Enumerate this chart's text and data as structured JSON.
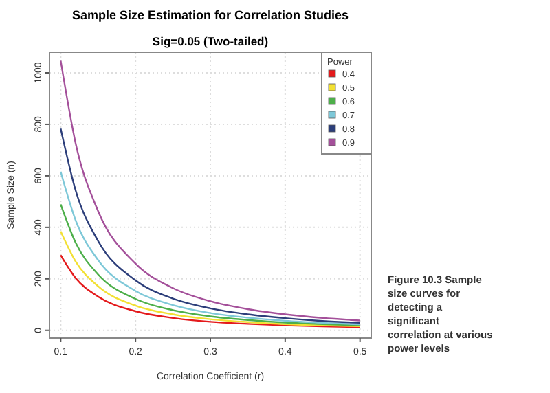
{
  "chart_data": {
    "type": "line",
    "title": "Sample Size Estimation for Correlation Studies",
    "subtitle": "Sig=0.05 (Two-tailed)",
    "xlabel": "Correlation Coefficient (r)",
    "ylabel": "Sample Size (n)",
    "legend_title": "Power",
    "x": [
      0.1,
      0.12,
      0.15,
      0.2,
      0.25,
      0.3,
      0.35,
      0.4,
      0.45,
      0.5
    ],
    "series": [
      {
        "name": "0.4",
        "color": "#e41a1c",
        "values": [
          292,
          203,
          131,
          74,
          48,
          33,
          25,
          19,
          15,
          13
        ]
      },
      {
        "name": "0.5",
        "color": "#f2e033",
        "values": [
          384,
          267,
          171,
          96,
          62,
          43,
          32,
          24,
          19,
          16
        ]
      },
      {
        "name": "0.6",
        "color": "#4daf4a",
        "values": [
          489,
          340,
          217,
          122,
          78,
          54,
          40,
          30,
          24,
          19
        ]
      },
      {
        "name": "0.7",
        "color": "#7ec8d8",
        "values": [
          616,
          427,
          273,
          153,
          98,
          67,
          49,
          37,
          29,
          23
        ]
      },
      {
        "name": "0.8",
        "color": "#2c3e7a",
        "values": [
          783,
          543,
          347,
          194,
          123,
          85,
          62,
          47,
          36,
          29
        ]
      },
      {
        "name": "0.9",
        "color": "#a4509a",
        "values": [
          1047,
          726,
          463,
          259,
          164,
          113,
          82,
          62,
          48,
          38
        ]
      }
    ],
    "xlim": [
      0.085,
      0.515
    ],
    "xticks": [
      0.1,
      0.2,
      0.3,
      0.4,
      0.5
    ],
    "ylim": [
      -30,
      1080
    ],
    "yticks": [
      0,
      200,
      400,
      600,
      800,
      1000
    ],
    "grid": true,
    "legend": "top right",
    "marker": "none",
    "line_style": "solid",
    "annotations": [
      "Figure 10.3 Sample size curves for detecting a significant correlation at various power levels"
    ]
  }
}
